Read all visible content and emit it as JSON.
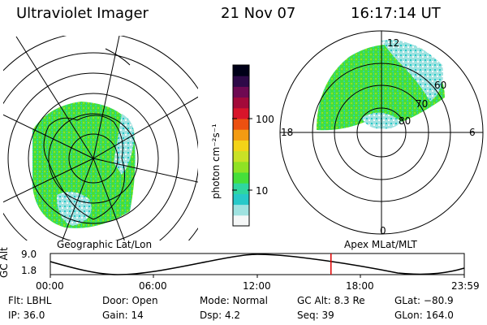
{
  "header": {
    "instrument": "Ultraviolet Imager",
    "date": "21 Nov 07",
    "time": "16:17:14 UT"
  },
  "colorbar": {
    "unit": "photon cm⁻²s⁻¹",
    "ticks": [
      "100",
      "10"
    ],
    "colors": [
      "#f5f7f7",
      "#9fe2e0",
      "#27c9c9",
      "#2fd6a0",
      "#45df3a",
      "#8fe224",
      "#c9e126",
      "#f3d318",
      "#f39b12",
      "#ec5010",
      "#d8152a",
      "#a30a3a",
      "#6e0a52",
      "#2e0a48",
      "#000018"
    ]
  },
  "maps": {
    "geo": {
      "label": "Geographic Lat/Lon"
    },
    "mag": {
      "label": "Apex MLat/MLT",
      "mlt_labels": {
        "top": "12",
        "left": "18",
        "right": "6",
        "bottom": "0"
      },
      "lat_labels": [
        "60",
        "70",
        "80"
      ]
    }
  },
  "timeline": {
    "y_axis_label": "GC Alt",
    "y_top": "9.0",
    "y_bottom": "1.8",
    "x_ticks": [
      "00:00",
      "06:00",
      "12:00",
      "18:00",
      "23:59"
    ],
    "current_fraction": 0.678,
    "marker_color": "#e00000"
  },
  "info": {
    "flt": "Flt: LBHL",
    "ip": "IP: 36.0",
    "door": "Door: Open",
    "gain": "Gain: 14",
    "mode": "Mode: Normal",
    "dsp": "Dsp:     4.2",
    "gcalt": "GC Alt: 8.3 Re",
    "seq": "Seq: 39",
    "glat": "GLat: −80.9",
    "glon": "GLon: 164.0"
  }
}
